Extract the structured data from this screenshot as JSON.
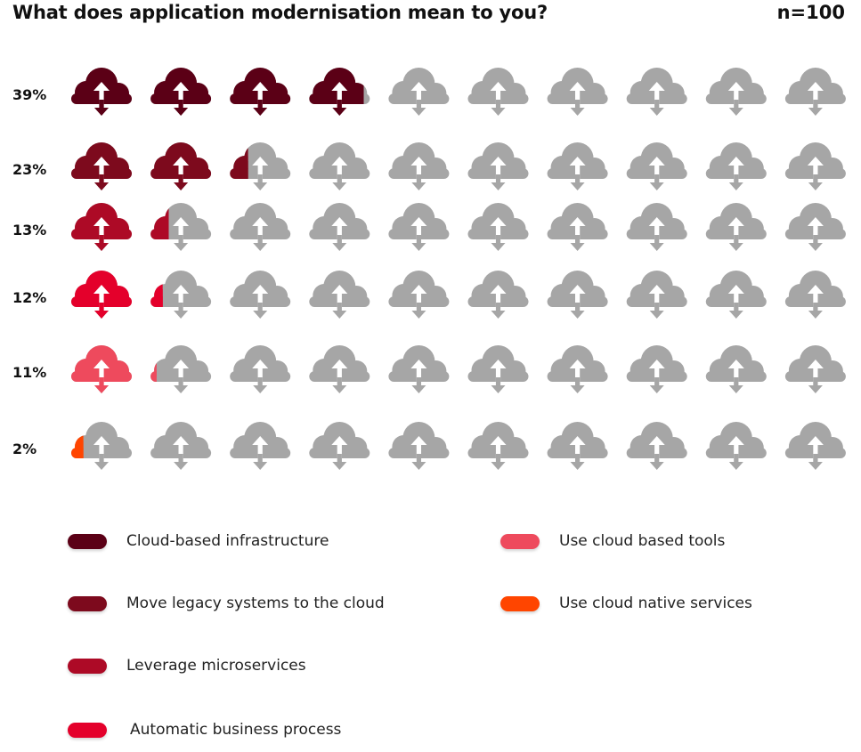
{
  "header": {
    "title": "What does application modernisation mean to you?",
    "sample": "n=100"
  },
  "icon": "cloud-upload-download-icon",
  "inactive_color": "#a6a6a6",
  "chart_data": {
    "type": "pictograph",
    "title": "What does application modernisation mean to you?",
    "sample_size": 100,
    "icons_per_row": 10,
    "units_per_icon": 10,
    "series": [
      {
        "name": "Cloud-based infrastructure",
        "value": 39,
        "label": "39%",
        "color": "#5b0016"
      },
      {
        "name": "Move legacy systems to the cloud",
        "value": 23,
        "label": "23%",
        "color": "#7d0a1d"
      },
      {
        "name": "Leverage microservices",
        "value": 13,
        "label": "13%",
        "color": "#ad0a26"
      },
      {
        "name": "Automatic business process",
        "value": 12,
        "label": "12%",
        "color": "#e4002b"
      },
      {
        "name": "Use cloud based tools",
        "value": 11,
        "label": "11%",
        "color": "#ee4a5d"
      },
      {
        "name": "Use cloud native services",
        "value": 2,
        "label": "2%",
        "color": "#ff4500"
      }
    ]
  },
  "legend": [
    {
      "label": "Cloud-based infrastructure",
      "color": "#5b0016"
    },
    {
      "label": "Move legacy systems to the cloud",
      "color": "#7d0a1d"
    },
    {
      "label": "Leverage microservices",
      "color": "#ad0a26"
    },
    {
      "label": "Automatic business process",
      "color": "#e4002b"
    },
    {
      "label": "Use cloud based tools",
      "color": "#ee4a5d"
    },
    {
      "label": "Use cloud native services",
      "color": "#ff4500"
    }
  ]
}
